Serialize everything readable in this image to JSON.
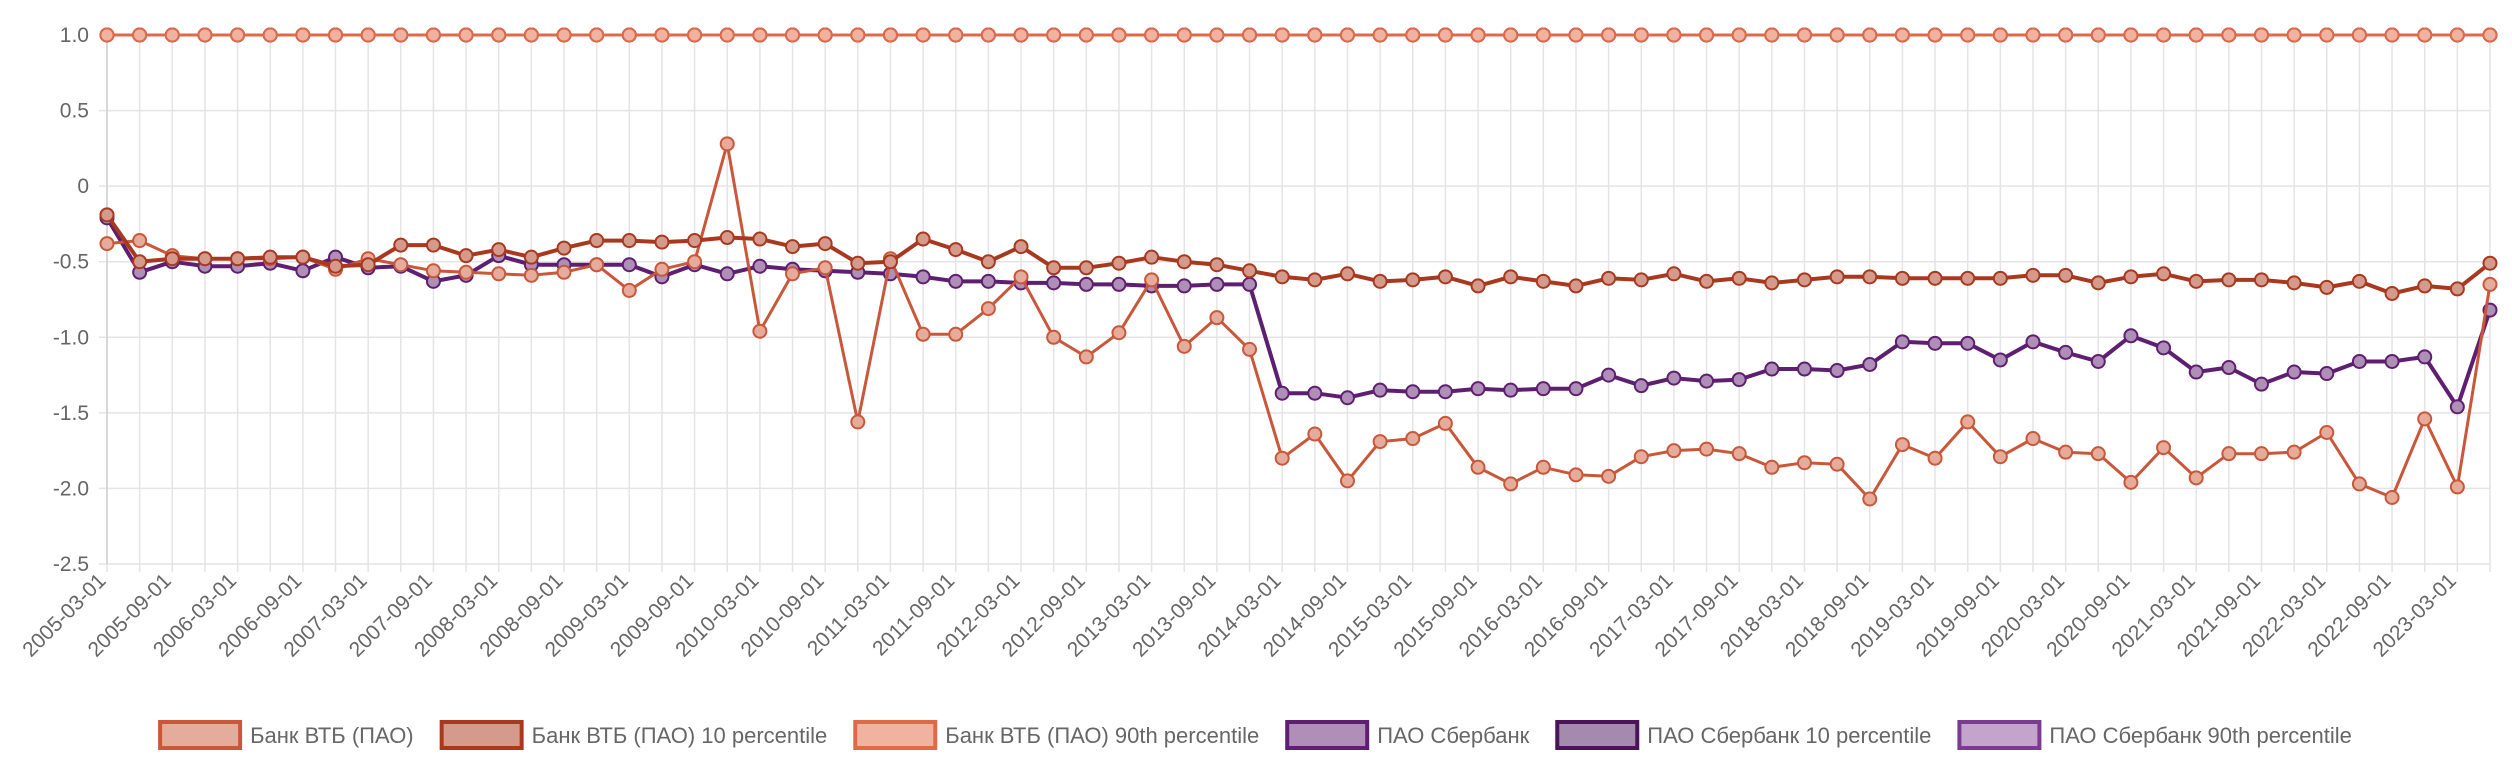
{
  "chart_data": {
    "type": "line",
    "title": "",
    "xlabel": "",
    "ylabel": "",
    "ylim": [
      -2.5,
      1.0
    ],
    "yticks": [
      1.0,
      0.5,
      0,
      -0.5,
      -1.0,
      -1.5,
      -2.0,
      -2.5
    ],
    "ytick_labels": [
      "1.0",
      "0.5",
      "0",
      "-0.5",
      "-1.0",
      "-1.5",
      "-2.0",
      "-2.5"
    ],
    "grid": true,
    "legend_position": "bottom",
    "x_start": "2005-03-01",
    "x_end": "2023-03-01",
    "x_step_months": 3,
    "x_tick_labels": [
      "2005-03-01",
      "2005-09-01",
      "2006-03-01",
      "2006-09-01",
      "2007-03-01",
      "2007-09-01",
      "2008-03-01",
      "2008-09-01",
      "2009-03-01",
      "2009-09-01",
      "2010-03-01",
      "2010-09-01",
      "2011-03-01",
      "2011-09-01",
      "2012-03-01",
      "2012-09-01",
      "2013-03-01",
      "2013-09-01",
      "2014-03-01",
      "2014-09-01",
      "2015-03-01",
      "2015-09-01",
      "2016-03-01",
      "2016-09-01",
      "2017-03-01",
      "2017-09-01",
      "2018-03-01",
      "2018-09-01",
      "2019-03-01",
      "2019-09-01",
      "2020-03-01",
      "2020-09-01",
      "2021-03-01",
      "2021-09-01",
      "2022-03-01",
      "2022-09-01",
      "2023-03-01"
    ],
    "series": [
      {
        "name": "Банк ВТБ (ПАО)",
        "color": "#c9573a",
        "legend_fill": "#e5ab9b",
        "line_width": 3,
        "values": [
          -0.38,
          -0.36,
          -0.46,
          -0.48,
          -0.48,
          -0.48,
          -0.47,
          -0.55,
          -0.48,
          -0.52,
          -0.56,
          -0.57,
          -0.58,
          -0.59,
          -0.57,
          -0.52,
          -0.69,
          -0.55,
          -0.5,
          0.28,
          -0.96,
          -0.58,
          -0.54,
          -1.56,
          -0.48,
          -0.98,
          -0.98,
          -0.81,
          -0.6,
          -1.0,
          -1.13,
          -0.97,
          -0.62,
          -1.06,
          -0.87,
          -1.08,
          -1.8,
          -1.64,
          -1.95,
          -1.69,
          -1.67,
          -1.57,
          -1.86,
          -1.97,
          -1.86,
          -1.91,
          -1.92,
          -1.79,
          -1.75,
          -1.74,
          -1.77,
          -1.86,
          -1.83,
          -1.84,
          -2.07,
          -1.71,
          -1.8,
          -1.56,
          -1.79,
          -1.67,
          -1.76,
          -1.77,
          -1.96,
          -1.73,
          -1.93,
          -1.77,
          -1.77,
          -1.76,
          -1.63,
          -1.97,
          -2.06,
          -1.54,
          -1.99,
          -0.65
        ]
      },
      {
        "name": "Банк ВТБ (ПАО) 10 percentile",
        "color": "#a8391f",
        "legend_fill": "#d49a8c",
        "line_width": 4,
        "values": [
          -0.19,
          -0.5,
          -0.48,
          -0.48,
          -0.48,
          -0.47,
          -0.47,
          -0.53,
          -0.52,
          -0.39,
          -0.39,
          -0.46,
          -0.42,
          -0.47,
          -0.41,
          -0.36,
          -0.36,
          -0.37,
          -0.36,
          -0.34,
          -0.35,
          -0.4,
          -0.38,
          -0.51,
          -0.5,
          -0.35,
          -0.42,
          -0.5,
          -0.4,
          -0.54,
          -0.54,
          -0.51,
          -0.47,
          -0.5,
          -0.52,
          -0.56,
          -0.6,
          -0.62,
          -0.58,
          -0.63,
          -0.62,
          -0.6,
          -0.66,
          -0.6,
          -0.63,
          -0.66,
          -0.61,
          -0.62,
          -0.58,
          -0.63,
          -0.61,
          -0.64,
          -0.62,
          -0.6,
          -0.6,
          -0.61,
          -0.61,
          -0.61,
          -0.61,
          -0.59,
          -0.59,
          -0.64,
          -0.6,
          -0.58,
          -0.63,
          -0.62,
          -0.62,
          -0.64,
          -0.67,
          -0.63,
          -0.71,
          -0.66,
          -0.68,
          -0.51
        ]
      },
      {
        "name": "Банк ВТБ (ПАО) 90th percentile",
        "color": "#e06a48",
        "legend_fill": "#f0b3a1",
        "line_width": 3,
        "values": [
          1,
          1,
          1,
          1,
          1,
          1,
          1,
          1,
          1,
          1,
          1,
          1,
          1,
          1,
          1,
          1,
          1,
          1,
          1,
          1,
          1,
          1,
          1,
          1,
          1,
          1,
          1,
          1,
          1,
          1,
          1,
          1,
          1,
          1,
          1,
          1,
          1,
          1,
          1,
          1,
          1,
          1,
          1,
          1,
          1,
          1,
          1,
          1,
          1,
          1,
          1,
          1,
          1,
          1,
          1,
          1,
          1,
          1,
          1,
          1,
          1,
          1,
          1,
          1,
          1,
          1,
          1,
          1,
          1,
          1,
          1,
          1,
          1,
          1
        ]
      },
      {
        "name": "ПАО Сбербанк",
        "color": "#5e1f70",
        "legend_fill": "#af8fb8",
        "line_width": 4,
        "values": [
          -0.21,
          -0.57,
          -0.5,
          -0.53,
          -0.53,
          -0.51,
          -0.56,
          -0.47,
          -0.54,
          -0.53,
          -0.63,
          -0.59,
          -0.46,
          -0.52,
          -0.52,
          -0.52,
          -0.52,
          -0.6,
          -0.52,
          -0.58,
          -0.53,
          -0.55,
          -0.56,
          -0.57,
          -0.58,
          -0.6,
          -0.63,
          -0.63,
          -0.64,
          -0.64,
          -0.65,
          -0.65,
          -0.66,
          -0.66,
          -0.65,
          -0.65,
          -1.37,
          -1.37,
          -1.4,
          -1.35,
          -1.36,
          -1.36,
          -1.34,
          -1.35,
          -1.34,
          -1.34,
          -1.25,
          -1.32,
          -1.27,
          -1.29,
          -1.28,
          -1.21,
          -1.21,
          -1.22,
          -1.18,
          -1.03,
          -1.04,
          -1.04,
          -1.15,
          -1.03,
          -1.1,
          -1.16,
          -0.99,
          -1.07,
          -1.23,
          -1.2,
          -1.31,
          -1.23,
          -1.24,
          -1.16,
          -1.16,
          -1.13,
          -1.46,
          -0.82
        ]
      },
      {
        "name": "ПАО Сбербанк 10 percentile",
        "color": "#4a1458",
        "legend_fill": "#a48aac",
        "line_width": 3,
        "values": [
          1,
          1,
          1,
          1,
          1,
          1,
          1,
          1,
          1,
          1,
          1,
          1,
          1,
          1,
          1,
          1,
          1,
          1,
          1,
          1,
          1,
          1,
          1,
          1,
          1,
          1,
          1,
          1,
          1,
          1,
          1,
          1,
          1,
          1,
          1,
          1,
          1,
          1,
          1,
          1,
          1,
          1,
          1,
          1,
          1,
          1,
          1,
          1,
          1,
          1,
          1,
          1,
          1,
          1,
          1,
          1,
          1,
          1,
          1,
          1,
          1,
          1,
          1,
          1,
          1,
          1,
          1,
          1,
          1,
          1,
          1,
          1,
          1,
          1
        ]
      },
      {
        "name": "ПАО Сбербанк 90th percentile",
        "color": "#7d3b8f",
        "legend_fill": "#c3a4cc",
        "line_width": 3,
        "values": [
          1,
          1,
          1,
          1,
          1,
          1,
          1,
          1,
          1,
          1,
          1,
          1,
          1,
          1,
          1,
          1,
          1,
          1,
          1,
          1,
          1,
          1,
          1,
          1,
          1,
          1,
          1,
          1,
          1,
          1,
          1,
          1,
          1,
          1,
          1,
          1,
          1,
          1,
          1,
          1,
          1,
          1,
          1,
          1,
          1,
          1,
          1,
          1,
          1,
          1,
          1,
          1,
          1,
          1,
          1,
          1,
          1,
          1,
          1,
          1,
          1,
          1,
          1,
          1,
          1,
          1,
          1,
          1,
          1,
          1,
          1,
          1,
          1,
          1
        ]
      }
    ],
    "draw_order": [
      5,
      4,
      3,
      0,
      1,
      2
    ]
  }
}
